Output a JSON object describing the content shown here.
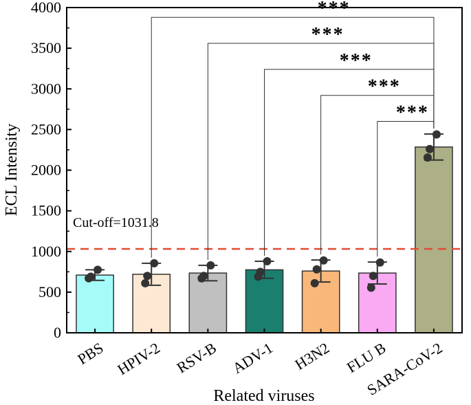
{
  "chart_data": {
    "type": "bar",
    "title": "",
    "xlabel": "Related viruses",
    "ylabel": "ECL Intensity",
    "ylim": [
      0,
      4000
    ],
    "yticks": [
      0,
      500,
      1000,
      1500,
      2000,
      2500,
      3000,
      3500,
      4000
    ],
    "categories": [
      "PBS",
      "HPIV-2",
      "RSV-B",
      "ADV-1",
      "H3N2",
      "FLU B",
      "SARA-CoV-2"
    ],
    "values": [
      710,
      720,
      735,
      775,
      760,
      735,
      2285
    ],
    "errors": [
      65,
      135,
      95,
      105,
      135,
      135,
      160
    ],
    "points": [
      [
        775,
        690,
        670
      ],
      [
        855,
        700,
        610
      ],
      [
        830,
        700,
        670
      ],
      [
        880,
        750,
        690
      ],
      [
        890,
        780,
        610
      ],
      [
        865,
        700,
        555
      ],
      [
        2440,
        2260,
        2155
      ]
    ],
    "bar_colors": [
      "#a5fbf8",
      "#fde8d4",
      "#c0c0c0",
      "#1a7f6e",
      "#f9b77a",
      "#f9aaf3",
      "#adaf86"
    ],
    "cutoff": {
      "value": 1031.8,
      "label": "Cut-off=1031.8",
      "color": "#e34a33"
    },
    "significance": [
      {
        "from": "HPIV-2",
        "to": "SARA-CoV-2",
        "label": "***"
      },
      {
        "from": "RSV-B",
        "to": "SARA-CoV-2",
        "label": "***"
      },
      {
        "from": "ADV-1",
        "to": "SARA-CoV-2",
        "label": "***"
      },
      {
        "from": "H3N2",
        "to": "SARA-CoV-2",
        "label": "***"
      },
      {
        "from": "FLU B",
        "to": "SARA-CoV-2",
        "label": "***"
      }
    ]
  }
}
